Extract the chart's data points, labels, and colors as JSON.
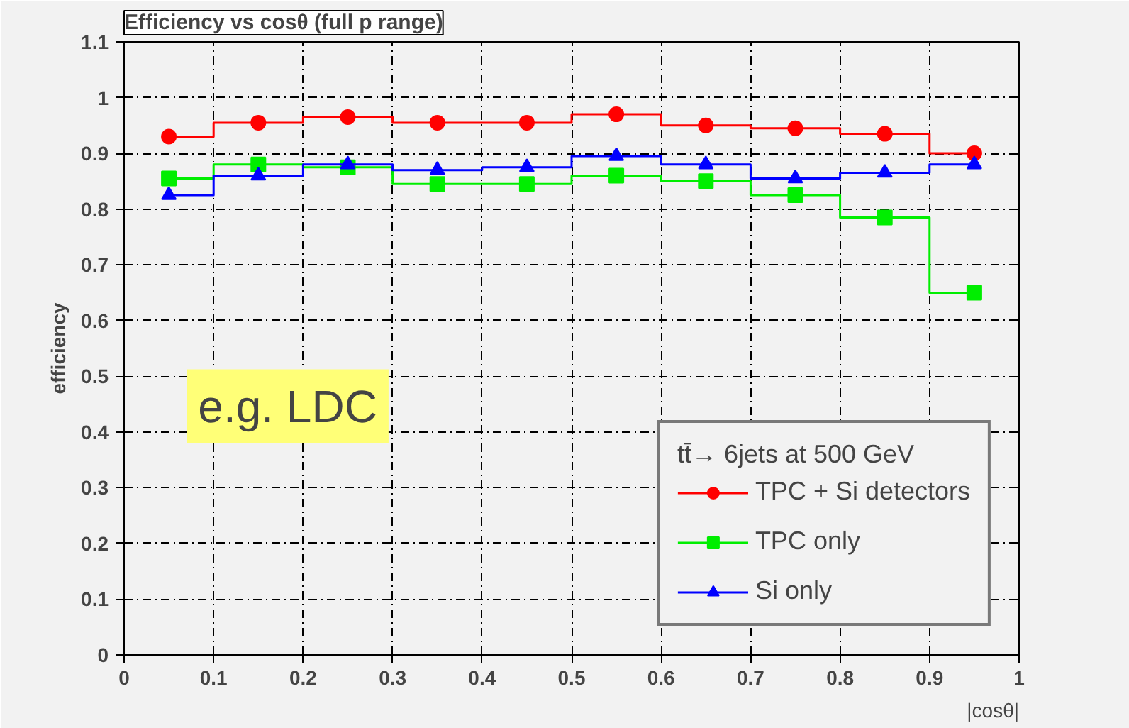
{
  "chart_data": {
    "type": "step",
    "title": "Efficiency vs cosθ (full p range)",
    "xlabel": "|cosθ|",
    "ylabel": "efficiency",
    "legend_title": "tt̄→ 6jets at 500 GeV",
    "x": [
      0.05,
      0.15,
      0.25,
      0.35,
      0.45,
      0.55,
      0.65,
      0.75,
      0.85,
      0.95
    ],
    "series": [
      {
        "name": "TPC + Si detectors",
        "color": "#ff0000",
        "marker": "circle",
        "values": [
          0.93,
          0.955,
          0.965,
          0.955,
          0.955,
          0.97,
          0.95,
          0.945,
          0.935,
          0.9
        ]
      },
      {
        "name": "TPC only",
        "color": "#00ee00",
        "marker": "square",
        "values": [
          0.855,
          0.88,
          0.875,
          0.845,
          0.845,
          0.86,
          0.85,
          0.825,
          0.785,
          0.65
        ]
      },
      {
        "name": "Si only",
        "color": "#0000ff",
        "marker": "triangle",
        "values": [
          0.825,
          0.86,
          0.88,
          0.87,
          0.875,
          0.895,
          0.88,
          0.855,
          0.865,
          0.88
        ]
      }
    ],
    "xlim": [
      0,
      1
    ],
    "ylim": [
      0,
      1.1
    ],
    "xticks": [
      0,
      0.1,
      0.2,
      0.3,
      0.4,
      0.5,
      0.6,
      0.7,
      0.8,
      0.9,
      1
    ],
    "yticks": [
      0,
      0.1,
      0.2,
      0.3,
      0.4,
      0.5,
      0.6,
      0.7,
      0.8,
      0.9,
      1,
      1.1
    ],
    "grid": true,
    "legend": "bottom right",
    "line_style": "solid",
    "annotations": [
      "e.g. LDC"
    ]
  }
}
